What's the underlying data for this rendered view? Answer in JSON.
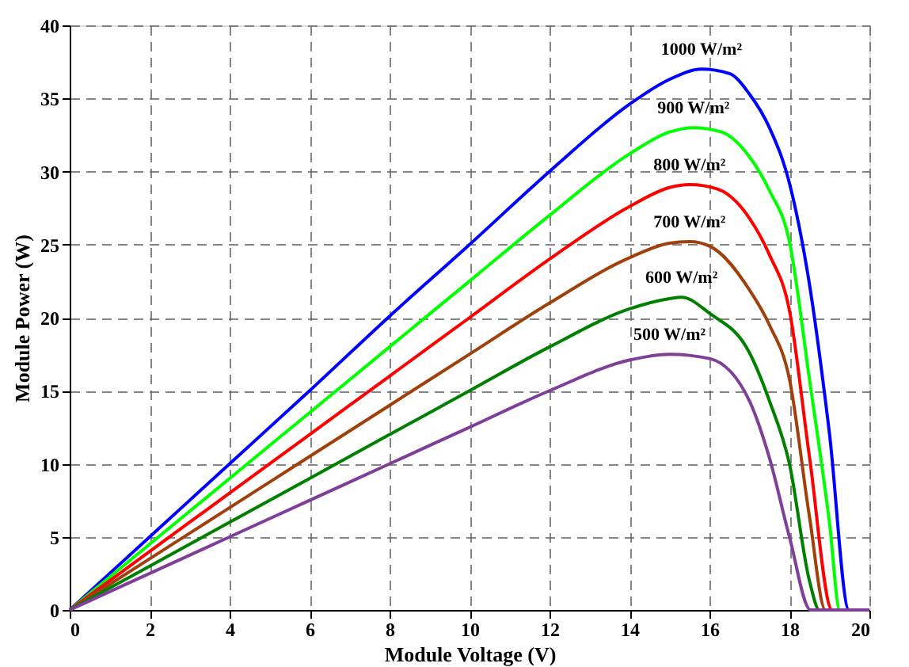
{
  "chart_data": {
    "type": "line",
    "xlabel": "Module Voltage (V)",
    "ylabel": "Module Power (W)",
    "xlim": [
      0,
      20
    ],
    "ylim": [
      0,
      40
    ],
    "xticks": [
      0,
      2,
      4,
      6,
      8,
      10,
      12,
      14,
      16,
      18,
      20
    ],
    "yticks": [
      0,
      5,
      10,
      15,
      20,
      25,
      30,
      35,
      40
    ],
    "grid": true,
    "line_style": "solid",
    "marker": "none",
    "legend": false,
    "series": [
      {
        "color": "#0000ff",
        "x": [
          0,
          2,
          4,
          6,
          8,
          10,
          12,
          14,
          15,
          15.8,
          16.5,
          17,
          17.5,
          18,
          18.5,
          19,
          19.49,
          20
        ],
        "values": [
          0,
          5,
          10,
          15,
          20.1,
          25,
          30,
          34.6,
          36.3,
          37,
          36.7,
          35.3,
          33,
          29.2,
          22.3,
          12.1,
          0,
          0
        ]
      },
      {
        "color": "#00ff00",
        "x": [
          0,
          2,
          4,
          6,
          8,
          10,
          12,
          14,
          15,
          15.6,
          16.3,
          17,
          17.5,
          18,
          18.5,
          19,
          19.26,
          20
        ],
        "values": [
          0,
          4.5,
          9,
          13.5,
          18,
          22.5,
          27,
          31.2,
          32.7,
          33,
          32.7,
          31,
          28.7,
          25.2,
          15.8,
          6,
          0,
          0
        ]
      },
      {
        "color": "#ff0000",
        "x": [
          0,
          2,
          4,
          6,
          8,
          10,
          12,
          14,
          15,
          15.5,
          16.2,
          17,
          17.5,
          18,
          18.5,
          19.07,
          20
        ],
        "values": [
          0,
          4,
          8,
          12,
          16,
          20,
          24,
          27.6,
          28.9,
          29.1,
          28.8,
          26.8,
          24.3,
          20.5,
          10.5,
          0,
          0
        ]
      },
      {
        "color": "#a0410d",
        "x": [
          0,
          2,
          4,
          6,
          8,
          10,
          12,
          14,
          15,
          15.5,
          16,
          17,
          17.5,
          18,
          18.5,
          18.9,
          20
        ],
        "values": [
          0,
          3.5,
          7,
          10.5,
          14,
          17.5,
          21,
          24.1,
          25.1,
          25.2,
          24.9,
          21.9,
          19.5,
          15.8,
          6.4,
          0,
          0
        ]
      },
      {
        "color": "#008000",
        "x": [
          0,
          2,
          4,
          6,
          8,
          10,
          12,
          14,
          15,
          15.3,
          16,
          17,
          17.5,
          18,
          18.5,
          18.75,
          20
        ],
        "values": [
          0,
          3,
          6,
          9,
          12,
          15,
          18,
          20.6,
          21.3,
          21.4,
          20.3,
          17.6,
          14.3,
          10,
          2,
          0,
          0
        ]
      },
      {
        "color": "#7f3f98",
        "x": [
          0,
          2,
          4,
          6,
          8,
          10,
          12,
          14,
          15,
          16,
          17,
          17.5,
          18,
          18.53,
          20
        ],
        "values": [
          0,
          2.5,
          5,
          7.5,
          10,
          12.5,
          15,
          17.1,
          17.5,
          17.2,
          14.3,
          10.4,
          5,
          0,
          0
        ]
      }
    ],
    "annotations": [
      "1000 W/m²",
      "900 W/m²",
      "800 W/m²",
      "700 W/m²",
      "600 W/m²",
      "500 W/m²"
    ]
  }
}
